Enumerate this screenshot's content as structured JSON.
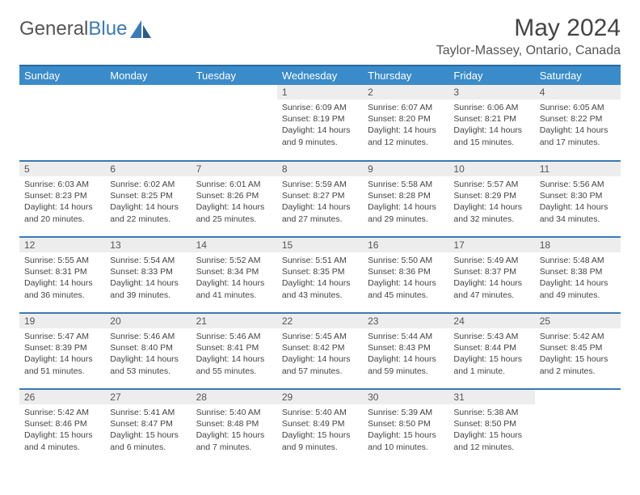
{
  "logo": {
    "part1": "General",
    "part2": "Blue"
  },
  "title": "May 2024",
  "location": "Taylor-Massey, Ontario, Canada",
  "header_bg": "#3a8bc9",
  "border_color": "#3a7ab8",
  "dayname_bg": "#ededed",
  "weekdays": [
    "Sunday",
    "Monday",
    "Tuesday",
    "Wednesday",
    "Thursday",
    "Friday",
    "Saturday"
  ],
  "days": {
    "1": {
      "sr": "Sunrise: 6:09 AM",
      "ss": "Sunset: 8:19 PM",
      "dl1": "Daylight: 14 hours",
      "dl2": "and 9 minutes."
    },
    "2": {
      "sr": "Sunrise: 6:07 AM",
      "ss": "Sunset: 8:20 PM",
      "dl1": "Daylight: 14 hours",
      "dl2": "and 12 minutes."
    },
    "3": {
      "sr": "Sunrise: 6:06 AM",
      "ss": "Sunset: 8:21 PM",
      "dl1": "Daylight: 14 hours",
      "dl2": "and 15 minutes."
    },
    "4": {
      "sr": "Sunrise: 6:05 AM",
      "ss": "Sunset: 8:22 PM",
      "dl1": "Daylight: 14 hours",
      "dl2": "and 17 minutes."
    },
    "5": {
      "sr": "Sunrise: 6:03 AM",
      "ss": "Sunset: 8:23 PM",
      "dl1": "Daylight: 14 hours",
      "dl2": "and 20 minutes."
    },
    "6": {
      "sr": "Sunrise: 6:02 AM",
      "ss": "Sunset: 8:25 PM",
      "dl1": "Daylight: 14 hours",
      "dl2": "and 22 minutes."
    },
    "7": {
      "sr": "Sunrise: 6:01 AM",
      "ss": "Sunset: 8:26 PM",
      "dl1": "Daylight: 14 hours",
      "dl2": "and 25 minutes."
    },
    "8": {
      "sr": "Sunrise: 5:59 AM",
      "ss": "Sunset: 8:27 PM",
      "dl1": "Daylight: 14 hours",
      "dl2": "and 27 minutes."
    },
    "9": {
      "sr": "Sunrise: 5:58 AM",
      "ss": "Sunset: 8:28 PM",
      "dl1": "Daylight: 14 hours",
      "dl2": "and 29 minutes."
    },
    "10": {
      "sr": "Sunrise: 5:57 AM",
      "ss": "Sunset: 8:29 PM",
      "dl1": "Daylight: 14 hours",
      "dl2": "and 32 minutes."
    },
    "11": {
      "sr": "Sunrise: 5:56 AM",
      "ss": "Sunset: 8:30 PM",
      "dl1": "Daylight: 14 hours",
      "dl2": "and 34 minutes."
    },
    "12": {
      "sr": "Sunrise: 5:55 AM",
      "ss": "Sunset: 8:31 PM",
      "dl1": "Daylight: 14 hours",
      "dl2": "and 36 minutes."
    },
    "13": {
      "sr": "Sunrise: 5:54 AM",
      "ss": "Sunset: 8:33 PM",
      "dl1": "Daylight: 14 hours",
      "dl2": "and 39 minutes."
    },
    "14": {
      "sr": "Sunrise: 5:52 AM",
      "ss": "Sunset: 8:34 PM",
      "dl1": "Daylight: 14 hours",
      "dl2": "and 41 minutes."
    },
    "15": {
      "sr": "Sunrise: 5:51 AM",
      "ss": "Sunset: 8:35 PM",
      "dl1": "Daylight: 14 hours",
      "dl2": "and 43 minutes."
    },
    "16": {
      "sr": "Sunrise: 5:50 AM",
      "ss": "Sunset: 8:36 PM",
      "dl1": "Daylight: 14 hours",
      "dl2": "and 45 minutes."
    },
    "17": {
      "sr": "Sunrise: 5:49 AM",
      "ss": "Sunset: 8:37 PM",
      "dl1": "Daylight: 14 hours",
      "dl2": "and 47 minutes."
    },
    "18": {
      "sr": "Sunrise: 5:48 AM",
      "ss": "Sunset: 8:38 PM",
      "dl1": "Daylight: 14 hours",
      "dl2": "and 49 minutes."
    },
    "19": {
      "sr": "Sunrise: 5:47 AM",
      "ss": "Sunset: 8:39 PM",
      "dl1": "Daylight: 14 hours",
      "dl2": "and 51 minutes."
    },
    "20": {
      "sr": "Sunrise: 5:46 AM",
      "ss": "Sunset: 8:40 PM",
      "dl1": "Daylight: 14 hours",
      "dl2": "and 53 minutes."
    },
    "21": {
      "sr": "Sunrise: 5:46 AM",
      "ss": "Sunset: 8:41 PM",
      "dl1": "Daylight: 14 hours",
      "dl2": "and 55 minutes."
    },
    "22": {
      "sr": "Sunrise: 5:45 AM",
      "ss": "Sunset: 8:42 PM",
      "dl1": "Daylight: 14 hours",
      "dl2": "and 57 minutes."
    },
    "23": {
      "sr": "Sunrise: 5:44 AM",
      "ss": "Sunset: 8:43 PM",
      "dl1": "Daylight: 14 hours",
      "dl2": "and 59 minutes."
    },
    "24": {
      "sr": "Sunrise: 5:43 AM",
      "ss": "Sunset: 8:44 PM",
      "dl1": "Daylight: 15 hours",
      "dl2": "and 1 minute."
    },
    "25": {
      "sr": "Sunrise: 5:42 AM",
      "ss": "Sunset: 8:45 PM",
      "dl1": "Daylight: 15 hours",
      "dl2": "and 2 minutes."
    },
    "26": {
      "sr": "Sunrise: 5:42 AM",
      "ss": "Sunset: 8:46 PM",
      "dl1": "Daylight: 15 hours",
      "dl2": "and 4 minutes."
    },
    "27": {
      "sr": "Sunrise: 5:41 AM",
      "ss": "Sunset: 8:47 PM",
      "dl1": "Daylight: 15 hours",
      "dl2": "and 6 minutes."
    },
    "28": {
      "sr": "Sunrise: 5:40 AM",
      "ss": "Sunset: 8:48 PM",
      "dl1": "Daylight: 15 hours",
      "dl2": "and 7 minutes."
    },
    "29": {
      "sr": "Sunrise: 5:40 AM",
      "ss": "Sunset: 8:49 PM",
      "dl1": "Daylight: 15 hours",
      "dl2": "and 9 minutes."
    },
    "30": {
      "sr": "Sunrise: 5:39 AM",
      "ss": "Sunset: 8:50 PM",
      "dl1": "Daylight: 15 hours",
      "dl2": "and 10 minutes."
    },
    "31": {
      "sr": "Sunrise: 5:38 AM",
      "ss": "Sunset: 8:50 PM",
      "dl1": "Daylight: 15 hours",
      "dl2": "and 12 minutes."
    }
  },
  "grid": [
    [
      null,
      null,
      null,
      "1",
      "2",
      "3",
      "4"
    ],
    [
      "5",
      "6",
      "7",
      "8",
      "9",
      "10",
      "11"
    ],
    [
      "12",
      "13",
      "14",
      "15",
      "16",
      "17",
      "18"
    ],
    [
      "19",
      "20",
      "21",
      "22",
      "23",
      "24",
      "25"
    ],
    [
      "26",
      "27",
      "28",
      "29",
      "30",
      "31",
      null
    ]
  ]
}
